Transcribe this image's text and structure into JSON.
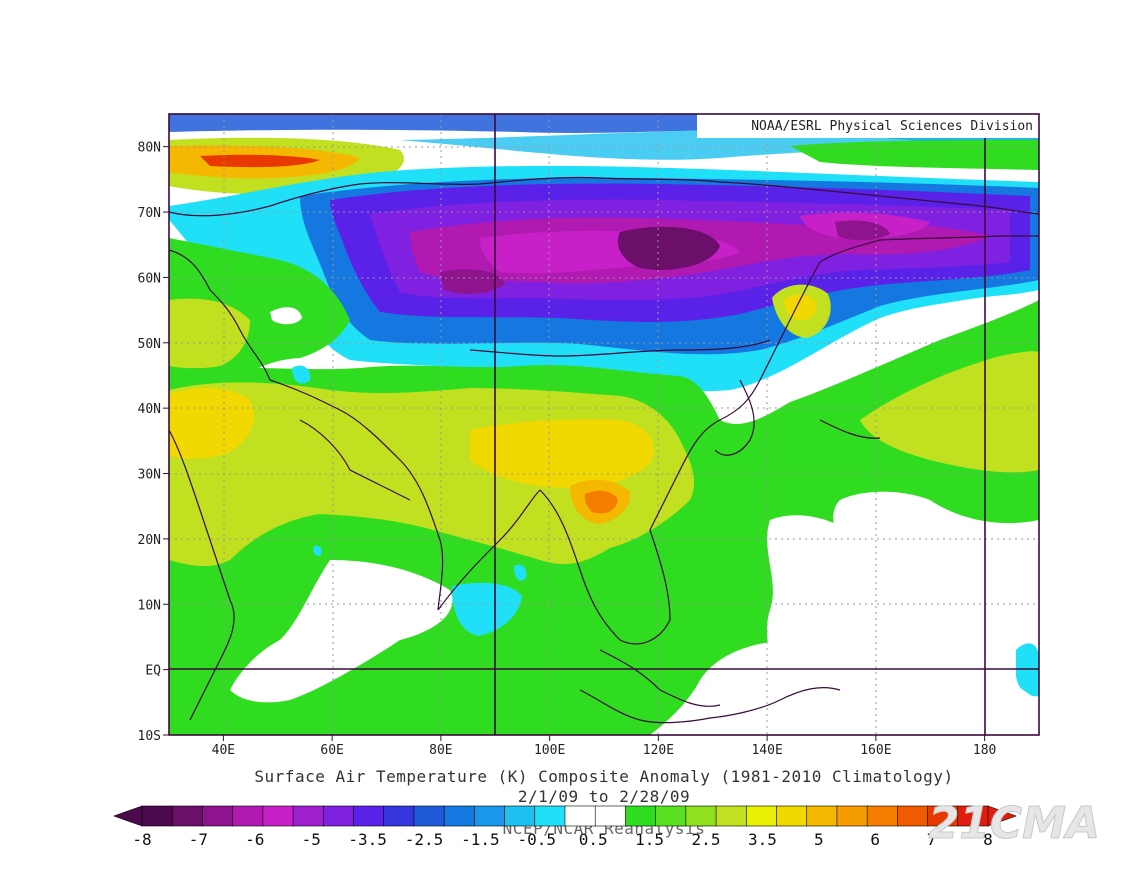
{
  "credit": "NOAA/ESRL Physical Sciences Division",
  "titles": {
    "line1": "Surface Air Temperature (K) Composite Anomaly (1981-2010 Climatology)",
    "line2": "2/1/09  to 2/28/09",
    "line3": "NCEP/NCAR Reanalysis"
  },
  "watermark": "21CMA",
  "map": {
    "lon_range": [
      30,
      190
    ],
    "lat_range": [
      -10,
      85
    ],
    "lon_ticks": [
      {
        "lon": 40,
        "label": "40E"
      },
      {
        "lon": 60,
        "label": "60E"
      },
      {
        "lon": 80,
        "label": "80E"
      },
      {
        "lon": 100,
        "label": "100E"
      },
      {
        "lon": 120,
        "label": "120E"
      },
      {
        "lon": 140,
        "label": "140E"
      },
      {
        "lon": 160,
        "label": "160E"
      },
      {
        "lon": 180,
        "label": "180"
      }
    ],
    "lat_ticks": [
      {
        "lat": 80,
        "label": "80N"
      },
      {
        "lat": 70,
        "label": "70N"
      },
      {
        "lat": 60,
        "label": "60N"
      },
      {
        "lat": 50,
        "label": "50N"
      },
      {
        "lat": 40,
        "label": "40N"
      },
      {
        "lat": 30,
        "label": "30N"
      },
      {
        "lat": 20,
        "label": "20N"
      },
      {
        "lat": 10,
        "label": "10N"
      },
      {
        "lat": 0,
        "label": "EQ"
      },
      {
        "lat": -10,
        "label": "10S"
      }
    ],
    "solid_lines": {
      "lons": [
        90,
        180
      ],
      "lats": [
        0
      ]
    }
  },
  "colorbar": {
    "labels": [
      "-8",
      "-7",
      "-6",
      "-5",
      "-3.5",
      "-2.5",
      "-1.5",
      "-0.5",
      "0.5",
      "1.5",
      "2.5",
      "3.5",
      "5",
      "6",
      "7",
      "8"
    ],
    "colors": [
      "#4b0a4b",
      "#6b0f6b",
      "#8e148e",
      "#b11ab1",
      "#c820c8",
      "#a020d0",
      "#8020e0",
      "#5a22e8",
      "#3535e0",
      "#1e5ad8",
      "#1478e0",
      "#1a96ea",
      "#1ec0f0",
      "#20e0f8",
      "#ffffff",
      "#ffffff",
      "#30dc20",
      "#5ae020",
      "#90e020",
      "#c0e020",
      "#e6f000",
      "#f0d800",
      "#f5b800",
      "#f59c00",
      "#f57e00",
      "#f05a00",
      "#e83a00",
      "#e01e10"
    ]
  },
  "regions": [
    {
      "name": "arctic-cold-blue",
      "color": "#1e5ad8"
    },
    {
      "name": "arctic-warm-red",
      "color": "#e83a00"
    },
    {
      "name": "siberia-cold-cyan",
      "color": "#20e0f8"
    },
    {
      "name": "siberia-cold-blue",
      "color": "#1478e0"
    },
    {
      "name": "siberia-cold-violet",
      "color": "#5a22e8"
    },
    {
      "name": "siberia-cold-purple",
      "color": "#8020e0"
    },
    {
      "name": "siberia-cold-magenta",
      "color": "#b11ab1"
    },
    {
      "name": "siberia-cold-core",
      "color": "#4b0a4b"
    },
    {
      "name": "asia-warm-green",
      "color": "#30dc20"
    },
    {
      "name": "asia-warm-yellow",
      "color": "#c0e020"
    },
    {
      "name": "asia-warm-orange",
      "color": "#f0d800"
    },
    {
      "name": "china-warm-core",
      "color": "#f57e00"
    },
    {
      "name": "pacific-warm-green",
      "color": "#30dc20"
    },
    {
      "name": "pacific-warm-yellow",
      "color": "#c0e020"
    },
    {
      "name": "indian-ocean-cool",
      "color": "#20e0f8"
    }
  ]
}
